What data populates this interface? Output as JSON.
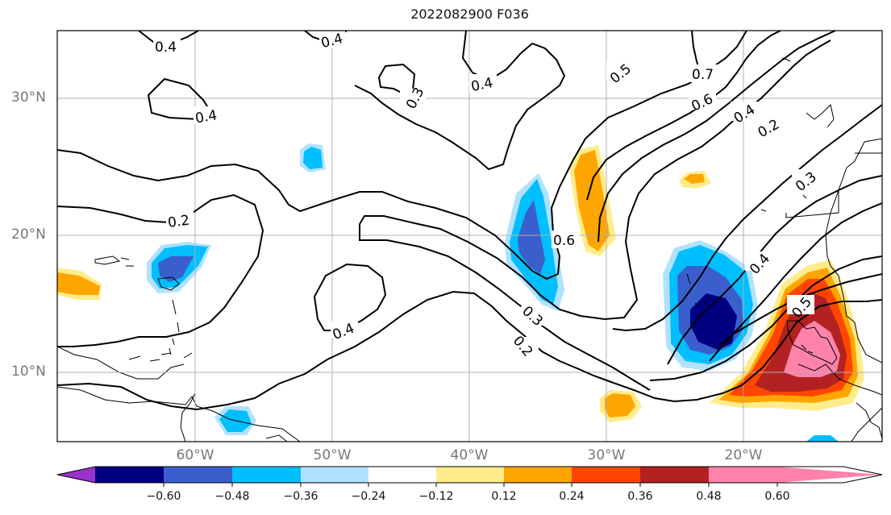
{
  "title": "2022082900 F036",
  "lat_labels": [
    "30°N",
    "20°N",
    "10°N"
  ],
  "lon_labels": [
    "60°W",
    "50°W",
    "40°W",
    "30°W",
    "20°W"
  ],
  "contour_labels": [
    "0.4",
    "0.4",
    "0.4",
    "0.3",
    "0.4",
    "0.5",
    "0.7",
    "0.6",
    "0.4",
    "0.2",
    "0.3",
    "0.2",
    "0.6",
    "0.4",
    "0.5",
    "0.4",
    "0.3",
    "0.2"
  ],
  "colorbar": {
    "ticks": [
      "−0.60",
      "−0.48",
      "−0.36",
      "−0.24",
      "−0.12",
      "0.12",
      "0.24",
      "0.36",
      "0.48",
      "0.60"
    ],
    "colors": [
      "#9932cc",
      "#000080",
      "#3a5fcd",
      "#00bfff",
      "#b0e2ff",
      "#ffffff",
      "#ffec8b",
      "#ffa500",
      "#ff4500",
      "#b22222",
      "#ff82ab"
    ]
  },
  "chart_data": {
    "type": "contour-map",
    "title": "2022082900 F036",
    "lat_ticks": [
      30,
      20,
      10
    ],
    "lon_ticks": [
      -60,
      -50,
      -40,
      -30,
      -20
    ],
    "contour_levels": [
      0.2,
      0.3,
      0.4,
      0.5,
      0.6,
      0.7
    ],
    "fill_levels": [
      -0.6,
      -0.48,
      -0.36,
      -0.24,
      -0.12,
      0.12,
      0.24,
      0.36,
      0.48,
      0.6
    ],
    "grid": true
  }
}
